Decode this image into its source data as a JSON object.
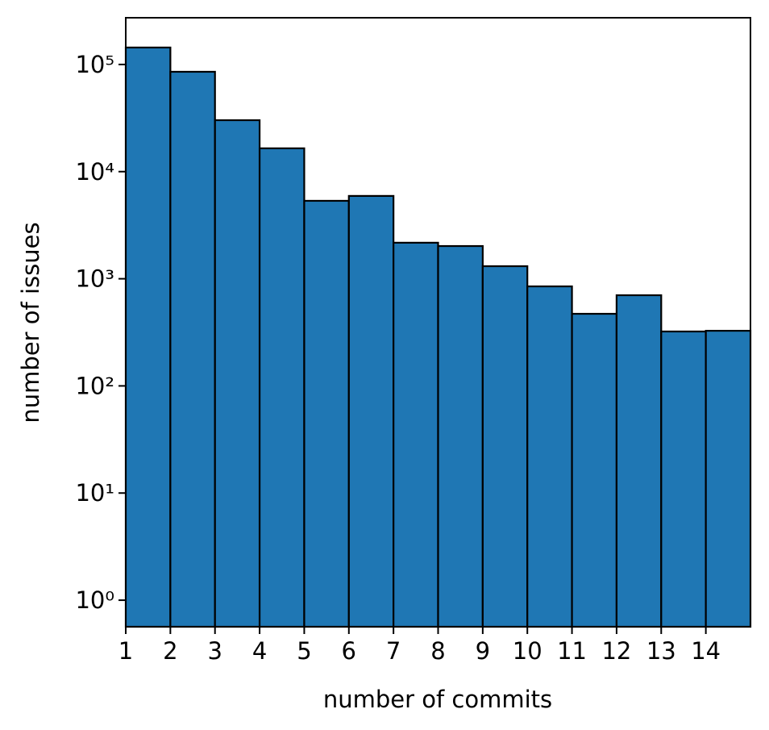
{
  "chart_data": {
    "type": "histogram",
    "x_label": "number of commits",
    "y_label": "number of issues",
    "bins": [
      1,
      2,
      3,
      4,
      5,
      6,
      7,
      8,
      9,
      10,
      11,
      12,
      13,
      14,
      15
    ],
    "counts": [
      144000,
      85500,
      30200,
      16500,
      5340,
      5930,
      2170,
      2020,
      1310,
      849,
      471,
      702,
      322,
      327
    ],
    "color": "#1f77b4",
    "edgecolor": "#000000",
    "xlim": [
      1,
      15
    ],
    "xticks": [
      1,
      2,
      3,
      4,
      5,
      6,
      7,
      8,
      9,
      10,
      11,
      12,
      13,
      14
    ],
    "ylim": [
      0.565,
      273000
    ],
    "log_y": true,
    "yticks": [
      {
        "value": 1,
        "label": "10⁰"
      },
      {
        "value": 10,
        "label": "10¹"
      },
      {
        "value": 100,
        "label": "10²"
      },
      {
        "value": 1000,
        "label": "10³"
      },
      {
        "value": 10000,
        "label": "10⁴"
      },
      {
        "value": 100000,
        "label": "10⁵"
      }
    ]
  }
}
